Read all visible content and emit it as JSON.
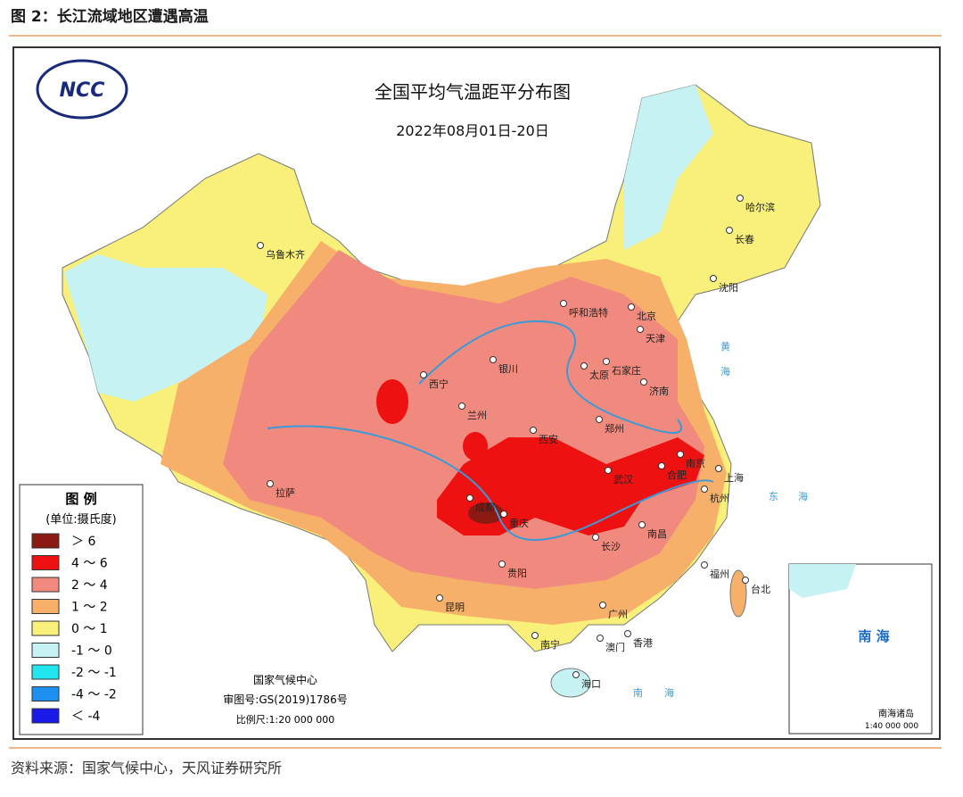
{
  "figure_label": "图 2：长江流域地区遭遇高温",
  "map": {
    "title": "全国平均气温距平分布图",
    "date": "2022年08月01日-20日",
    "logo": "NCC",
    "legend": {
      "title": "图 例",
      "unit": "(单位:摄氏度)",
      "items": [
        {
          "label": "＞ 6",
          "color": "#8b1a12"
        },
        {
          "label": "4 ～ 6",
          "color": "#ee1111"
        },
        {
          "label": "2 ～ 4",
          "color": "#f08a7e"
        },
        {
          "label": "1 ～ 2",
          "color": "#f6b06a"
        },
        {
          "label": "0 ～ 1",
          "color": "#f8f07a"
        },
        {
          "label": "-1 ～ 0",
          "color": "#c6f2f4"
        },
        {
          "label": "-2 ～ -1",
          "color": "#22e6ee"
        },
        {
          "label": "-4 ～ -2",
          "color": "#1e90f0"
        },
        {
          "label": "＜ -4",
          "color": "#1a1ae8"
        }
      ]
    },
    "cities": [
      "乌鲁木齐",
      "哈尔滨",
      "长春",
      "沈阳",
      "呼和浩特",
      "北京",
      "天津",
      "银川",
      "石家庄",
      "太原",
      "西宁",
      "兰州",
      "济南",
      "郑州",
      "西安",
      "南京",
      "合肥",
      "上海",
      "武汉",
      "拉萨",
      "成都",
      "重庆",
      "杭州",
      "长沙",
      "南昌",
      "福州",
      "台北",
      "贵阳",
      "昆明",
      "广州",
      "南宁",
      "澳门",
      "香港",
      "海口"
    ],
    "seas": [
      "黄",
      "海",
      "东",
      "海",
      "南",
      "海"
    ],
    "footer": [
      "国家气候中心",
      "审图号:GS(2019)1786号",
      "比例尺:1:20 000 000"
    ],
    "inset": {
      "title": "南 海",
      "islands": "南海诸岛",
      "scale": "1:40 000 000"
    }
  },
  "source": "资料来源：国家气候中心，天风证券研究所"
}
